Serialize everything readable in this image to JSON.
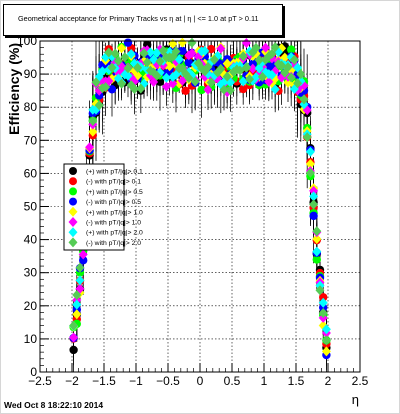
{
  "chart_data": {
    "type": "scatter",
    "title": "Geometrical acceptance for Primary Tracks vs   η at | η | <= 1.0 at pT > 0.11",
    "xlabel": "η",
    "ylabel": "Efficiency (%)",
    "xlim": [
      -2.5,
      2.5
    ],
    "ylim": [
      0,
      100
    ],
    "xticks": [
      -2.5,
      -2,
      -1.5,
      -1,
      -0.5,
      0,
      0.5,
      1,
      1.5,
      2,
      2.5
    ],
    "xtick_labels": [
      "−2.5",
      "−2",
      "−1.5",
      "−1",
      "−0.5",
      "0",
      "0.5",
      "1",
      "1.5",
      "2",
      "2.5"
    ],
    "yticks": [
      0,
      10,
      20,
      30,
      40,
      50,
      60,
      70,
      80,
      90,
      100
    ],
    "ytick_labels": [
      "0",
      "10",
      "20",
      "30",
      "40",
      "50",
      "60",
      "70",
      "80",
      "90",
      "100"
    ],
    "grid": true,
    "legend_position": "left-middle",
    "series": [
      {
        "name": "(+) with pT/|q|> 0.1",
        "color": "#000000",
        "shape": "circle",
        "seed": 3
      },
      {
        "name": "(-) with pT/|q|> 0.1",
        "color": "#ff0000",
        "shape": "circle",
        "seed": 7
      },
      {
        "name": "(+) with pT/|q|> 0.5",
        "color": "#00ff00",
        "shape": "circle",
        "seed": 11
      },
      {
        "name": "(-) with pT/|q|> 0.5",
        "color": "#0000ff",
        "shape": "circle",
        "seed": 13
      },
      {
        "name": "(+) with pT/|q|> 1.0",
        "color": "#ffff00",
        "shape": "diamond",
        "seed": 17
      },
      {
        "name": "(-) with pT/|q|> 1.0",
        "color": "#ff00ff",
        "shape": "diamond",
        "seed": 19
      },
      {
        "name": "(+) with pT/|q|> 2.0",
        "color": "#00ffff",
        "shape": "diamond",
        "seed": 23
      },
      {
        "name": "(-) with pT/|q|> 2.0",
        "color": "#55cc55",
        "shape": "diamond",
        "seed": 29
      }
    ]
  },
  "footer": "Wed Oct  8 18:22:10 2014"
}
